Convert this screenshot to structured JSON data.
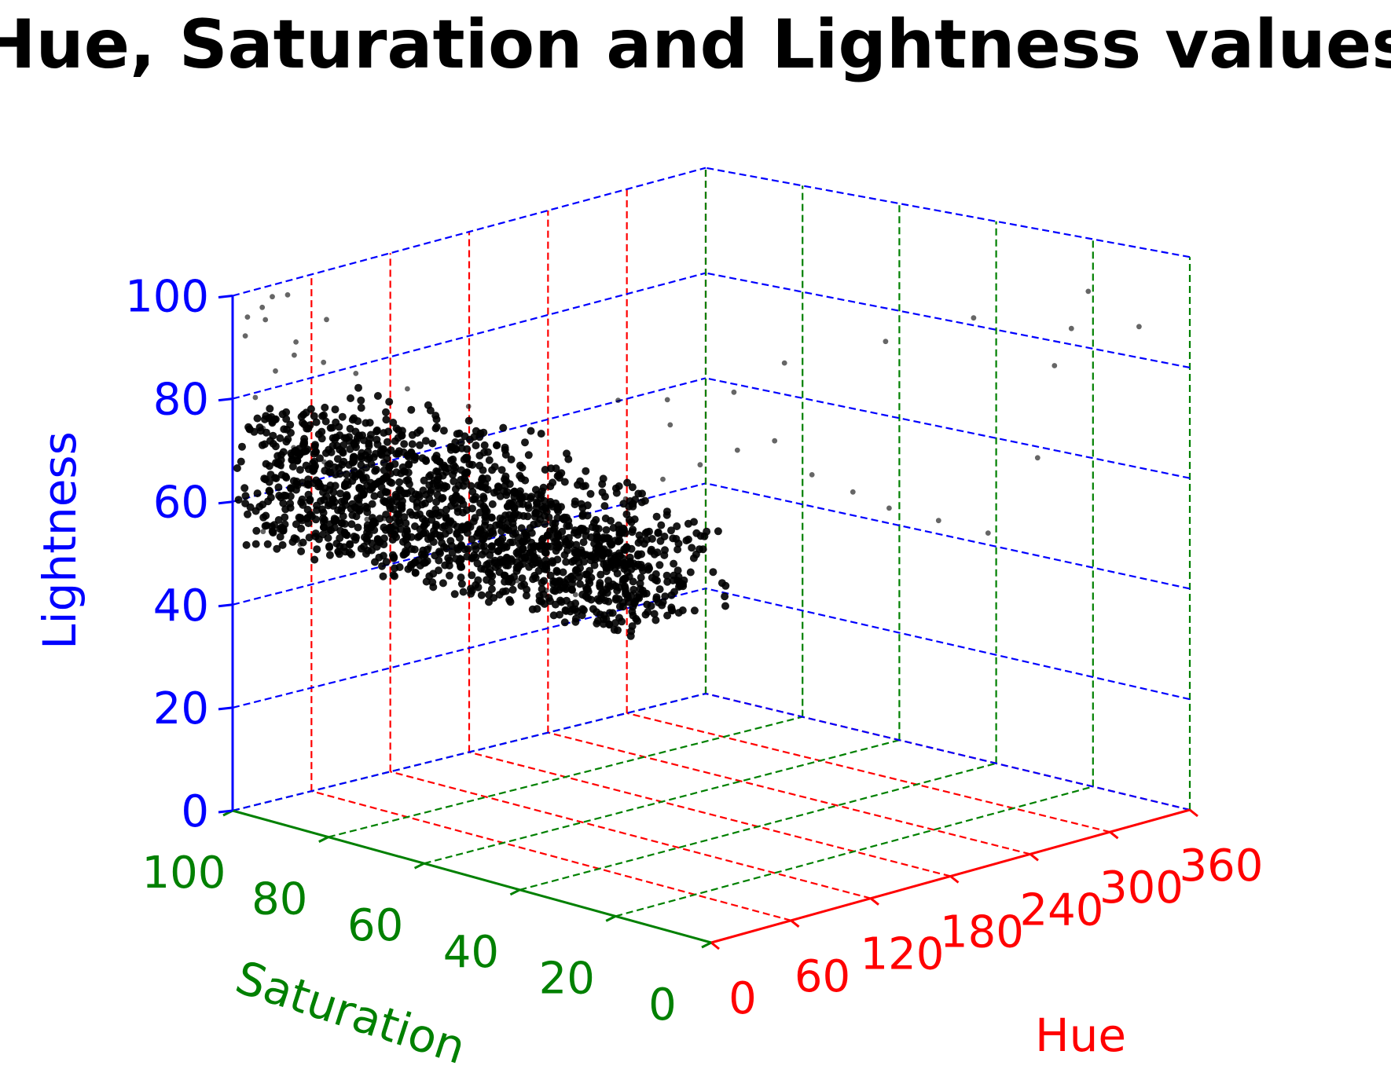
{
  "chart_data": {
    "type": "scatter",
    "title": "Hue, Saturation and Lightness values",
    "xlabel": "Hue",
    "ylabel": "Saturation",
    "zlabel": "Lightness",
    "xlim": [
      0,
      360
    ],
    "ylim": [
      0,
      100
    ],
    "zlim": [
      0,
      100
    ],
    "xticks": [
      "0",
      "60",
      "120",
      "180",
      "240",
      "300",
      "360"
    ],
    "yticks": [
      "0",
      "20",
      "40",
      "60",
      "80",
      "100"
    ],
    "zticks": [
      "0",
      "20",
      "40",
      "60",
      "80",
      "100"
    ],
    "grid": true,
    "colors": {
      "hue": "#ff0000",
      "saturation": "#008000",
      "lightness": "#0000ff",
      "points": "#000000"
    },
    "series": [
      {
        "marker_color": "#000000",
        "dense_cluster": {
          "hue": [
            0,
            80
          ],
          "saturation": [
            18,
            100
          ],
          "lightness": [
            52,
            78
          ]
        },
        "hsl_points": [
          [
            5,
            95,
            75
          ],
          [
            10,
            90,
            72
          ],
          [
            15,
            85,
            70
          ],
          [
            20,
            80,
            68
          ],
          [
            25,
            75,
            66
          ],
          [
            30,
            70,
            64
          ],
          [
            35,
            65,
            62
          ],
          [
            40,
            60,
            60
          ],
          [
            45,
            55,
            58
          ],
          [
            50,
            50,
            57
          ],
          [
            8,
            92,
            68
          ],
          [
            12,
            88,
            65
          ],
          [
            18,
            84,
            62
          ],
          [
            22,
            78,
            60
          ],
          [
            28,
            74,
            58
          ],
          [
            33,
            68,
            56
          ],
          [
            38,
            63,
            55
          ],
          [
            44,
            58,
            55
          ],
          [
            52,
            52,
            56
          ],
          [
            60,
            45,
            58
          ],
          [
            4,
            60,
            60
          ],
          [
            8,
            55,
            58
          ],
          [
            12,
            50,
            57
          ],
          [
            16,
            45,
            56
          ],
          [
            20,
            40,
            55
          ],
          [
            24,
            35,
            55
          ],
          [
            28,
            30,
            56
          ],
          [
            32,
            25,
            57
          ],
          [
            6,
            70,
            63
          ],
          [
            14,
            62,
            61
          ],
          [
            10,
            98,
            80
          ],
          [
            18,
            96,
            85
          ],
          [
            25,
            94,
            88
          ],
          [
            6,
            99,
            92
          ],
          [
            14,
            97,
            95
          ],
          [
            30,
            95,
            90
          ],
          [
            40,
            92,
            86
          ],
          [
            50,
            88,
            84
          ],
          [
            60,
            80,
            82
          ],
          [
            70,
            70,
            80
          ],
          [
            8,
            96,
            98
          ],
          [
            12,
            95,
            100
          ],
          [
            20,
            94,
            100
          ],
          [
            4,
            98,
            96
          ],
          [
            35,
            90,
            95
          ],
          [
            80,
            40,
            68
          ],
          [
            90,
            35,
            72
          ],
          [
            100,
            30,
            75
          ],
          [
            110,
            25,
            78
          ],
          [
            120,
            20,
            80
          ],
          [
            130,
            15,
            74
          ],
          [
            150,
            12,
            70
          ],
          [
            170,
            10,
            66
          ],
          [
            200,
            8,
            62
          ],
          [
            230,
            6,
            58
          ],
          [
            260,
            4,
            70
          ],
          [
            280,
            6,
            85
          ],
          [
            300,
            8,
            90
          ],
          [
            320,
            10,
            95
          ],
          [
            340,
            5,
            88
          ],
          [
            150,
            50,
            75
          ],
          [
            180,
            45,
            80
          ],
          [
            200,
            40,
            85
          ],
          [
            240,
            30,
            88
          ],
          [
            270,
            20,
            92
          ],
          [
            2,
            20,
            96
          ],
          [
            3,
            10,
            98
          ],
          [
            5,
            95,
            55
          ],
          [
            15,
            90,
            53
          ],
          [
            25,
            85,
            52
          ]
        ]
      }
    ]
  }
}
